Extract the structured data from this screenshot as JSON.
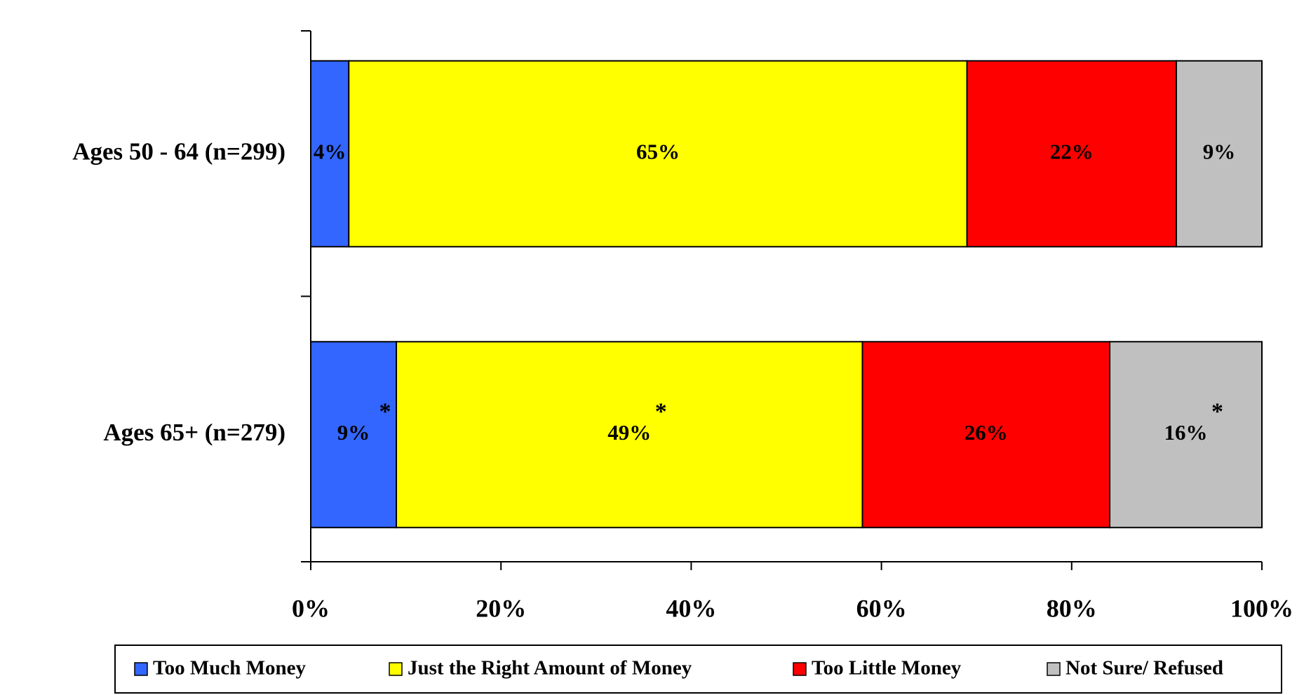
{
  "chart_data": {
    "type": "stacked-bar-horizontal",
    "categories": [
      "Ages 50 - 64 (n=299)",
      "Ages 65+ (n=279)"
    ],
    "series": [
      {
        "name": "Too Much Money",
        "color": "#3366ff",
        "values": [
          4,
          9
        ],
        "value_labels": [
          "4%",
          "9%"
        ],
        "notes": [
          null,
          "*"
        ]
      },
      {
        "name": "Just the Right Amount of Money",
        "color": "#ffff00",
        "values": [
          65,
          49
        ],
        "value_labels": [
          "65%",
          "49%"
        ],
        "notes": [
          null,
          "*"
        ]
      },
      {
        "name": "Too Little Money",
        "color": "#ff0000",
        "values": [
          22,
          26
        ],
        "value_labels": [
          "22%",
          "26%"
        ],
        "notes": [
          null,
          null
        ]
      },
      {
        "name": "Not Sure/ Refused",
        "color": "#c0c0c0",
        "values": [
          9,
          16
        ],
        "value_labels": [
          "9%",
          "16%"
        ],
        "notes": [
          null,
          "*"
        ]
      }
    ],
    "xlim": [
      0,
      100
    ],
    "xticks": [
      {
        "value": 0,
        "label": "0%"
      },
      {
        "value": 20,
        "label": "20%"
      },
      {
        "value": 40,
        "label": "40%"
      },
      {
        "value": 60,
        "label": "60%"
      },
      {
        "value": 80,
        "label": "80%"
      },
      {
        "value": 100,
        "label": "100%"
      }
    ],
    "legend": "bottom"
  }
}
